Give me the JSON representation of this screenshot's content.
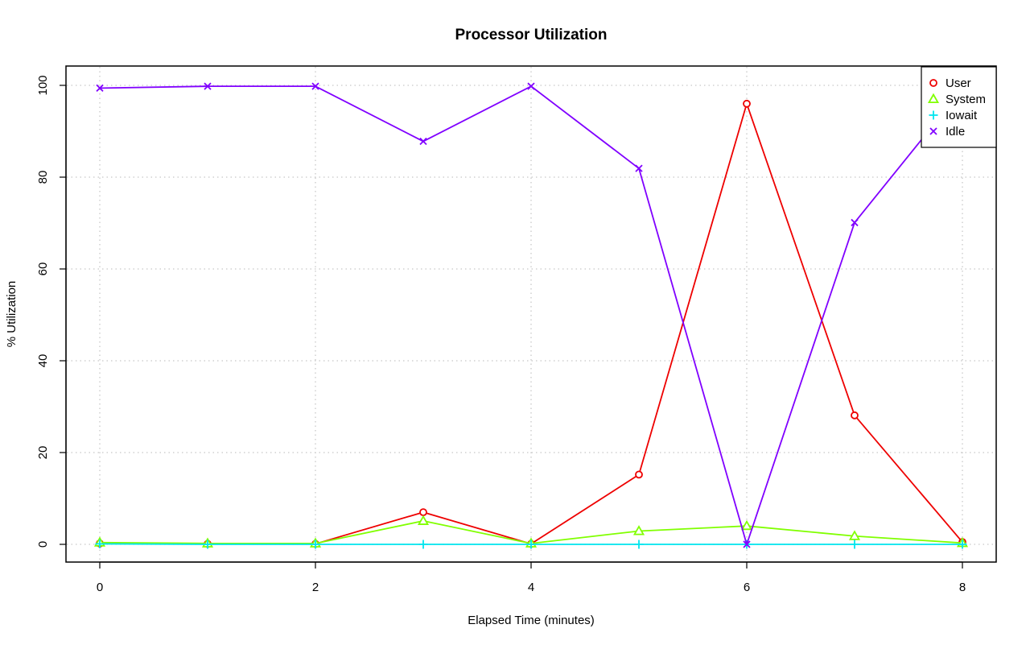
{
  "chart_data": {
    "type": "line",
    "title": "Processor Utilization",
    "xlabel": "Elapsed Time (minutes)",
    "ylabel": "% Utilization",
    "x": [
      0,
      1,
      2,
      3,
      4,
      5,
      6,
      7,
      8
    ],
    "xlim": [
      0,
      8
    ],
    "ylim": [
      0,
      100
    ],
    "x_ticks": [
      "0",
      "2",
      "4",
      "6",
      "8"
    ],
    "y_ticks": [
      "0",
      "20",
      "40",
      "60",
      "80",
      "100"
    ],
    "grid": true,
    "legend_position": "top-right",
    "series": [
      {
        "name": "User",
        "color": "#ee0000",
        "marker": "circle",
        "values": [
          0.2,
          0.1,
          0.1,
          7.0,
          0.1,
          15.2,
          96.0,
          28.1,
          0.5
        ]
      },
      {
        "name": "System",
        "color": "#80ff00",
        "marker": "triangle",
        "values": [
          0.4,
          0.2,
          0.2,
          5.1,
          0.2,
          2.9,
          4.0,
          1.8,
          0.3
        ]
      },
      {
        "name": "Iowait",
        "color": "#00e5ee",
        "marker": "plus",
        "values": [
          0.1,
          0.0,
          0.0,
          0.0,
          0.0,
          0.0,
          0.0,
          0.0,
          0.0
        ]
      },
      {
        "name": "Idle",
        "color": "#8000ff",
        "marker": "cross",
        "values": [
          99.4,
          99.8,
          99.8,
          87.8,
          99.8,
          81.9,
          0.0,
          70.1,
          99.2
        ]
      }
    ]
  }
}
